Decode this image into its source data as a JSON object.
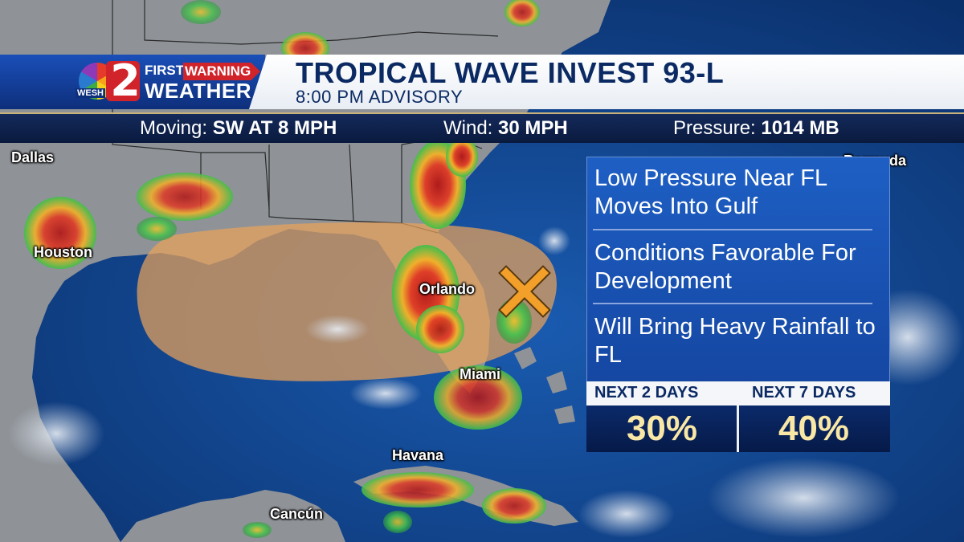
{
  "header": {
    "title": "TROPICAL WAVE INVEST 93-L",
    "subtitle": "8:00 PM ADVISORY",
    "brand_first": "FIRST",
    "brand_warning": "WARNING",
    "brand_weather": "WEATHER",
    "station": "WESH",
    "channel": "2"
  },
  "stats": {
    "moving_label": "Moving:",
    "moving_value": "SW AT 8 MPH",
    "wind_label": "Wind:",
    "wind_value": "30 MPH",
    "pressure_label": "Pressure:",
    "pressure_value": "1014 MB"
  },
  "panel": {
    "line1": "Low Pressure Near FL Moves Into Gulf",
    "line2": "Conditions Favorable For Development",
    "line3": "Will Bring Heavy Rainfall to FL",
    "next2_label": "NEXT 2 DAYS",
    "next7_label": "NEXT 7 DAYS",
    "next2_value": "30%",
    "next7_value": "40%"
  },
  "cities": {
    "dallas": "Dallas",
    "houston": "Houston",
    "orlando": "Orlando",
    "miami": "Miami",
    "havana": "Havana",
    "cancun": "Cancún",
    "bermuda": "Bermuda"
  },
  "colors": {
    "ocean": "#0d3a78",
    "land": "#8f9398",
    "development_area": "#e9a25a",
    "marker": "#f2a02a",
    "panel": "#1e5fc4",
    "percent_text": "#f9e7a6"
  }
}
